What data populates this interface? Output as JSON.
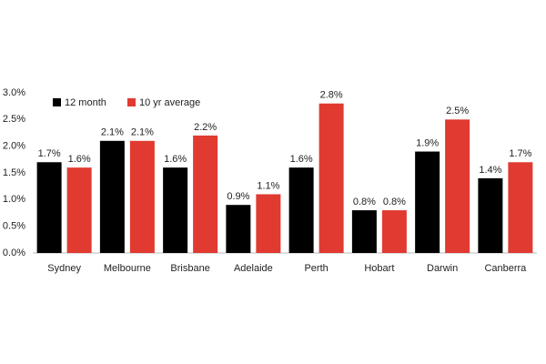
{
  "chart_data": {
    "type": "bar",
    "categories": [
      "Sydney",
      "Melbourne",
      "Brisbane",
      "Adelaide",
      "Perth",
      "Hobart",
      "Darwin",
      "Canberra"
    ],
    "series": [
      {
        "name": "12 month",
        "color": "#000000",
        "values": [
          1.7,
          2.1,
          1.6,
          0.9,
          1.6,
          0.8,
          1.9,
          1.4
        ],
        "value_labels": [
          "1.7%",
          "2.1%",
          "1.6%",
          "0.9%",
          "1.6%",
          "0.8%",
          "1.9%",
          "1.4%"
        ]
      },
      {
        "name": "10 yr average",
        "color": "#e03a31",
        "values": [
          1.6,
          2.1,
          2.2,
          1.1,
          2.8,
          0.8,
          2.5,
          1.7
        ],
        "value_labels": [
          "1.6%",
          "2.1%",
          "2.2%",
          "1.1%",
          "2.8%",
          "0.8%",
          "2.5%",
          "1.7%"
        ]
      }
    ],
    "ylim": [
      0,
      3
    ],
    "yticks": [
      {
        "value": 0,
        "label": "0.0%"
      },
      {
        "value": 0.5,
        "label": "0.5%"
      },
      {
        "value": 1,
        "label": "1.0%"
      },
      {
        "value": 1.5,
        "label": "1.5%"
      },
      {
        "value": 2,
        "label": "2.0%"
      },
      {
        "value": 2.5,
        "label": "2.5%"
      },
      {
        "value": 3,
        "label": "3.0%"
      }
    ],
    "grid": false,
    "legend": "top-left"
  }
}
